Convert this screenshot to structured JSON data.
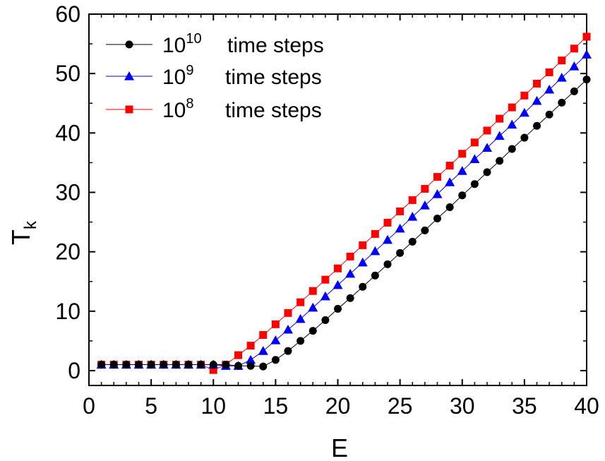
{
  "chart_data": {
    "type": "line",
    "xlabel": "E",
    "ylabel": "T",
    "ylabel_sub": "k",
    "xlim": [
      0,
      40
    ],
    "ylim": [
      -2.5,
      60
    ],
    "x_ticks": [
      0,
      5,
      10,
      15,
      20,
      25,
      30,
      35,
      40
    ],
    "y_ticks": [
      0,
      10,
      20,
      30,
      40,
      50,
      60
    ],
    "grid": false,
    "legend_position": "top-left",
    "x": [
      1,
      2,
      3,
      4,
      5,
      6,
      7,
      8,
      9,
      10,
      11,
      12,
      13,
      14,
      15,
      16,
      17,
      18,
      19,
      20,
      21,
      22,
      23,
      24,
      25,
      26,
      27,
      28,
      29,
      30,
      31,
      32,
      33,
      34,
      35,
      36,
      37,
      38,
      39,
      40
    ],
    "series": [
      {
        "base": "10",
        "exponent": "10",
        "suffix": "time steps",
        "color": "#000000",
        "marker": "circle",
        "values": [
          1.0,
          1.0,
          1.0,
          1.0,
          1.0,
          1.0,
          1.0,
          1.0,
          1.0,
          1.0,
          1.0,
          0.8,
          0.8,
          0.7,
          1.8,
          3.3,
          5.0,
          6.7,
          8.5,
          10.4,
          12.2,
          14.1,
          16.0,
          17.9,
          19.8,
          21.7,
          23.6,
          25.6,
          27.5,
          29.5,
          31.4,
          33.4,
          35.3,
          37.3,
          39.2,
          41.2,
          43.1,
          45.1,
          47.0,
          49.0
        ]
      },
      {
        "base": "10",
        "exponent": "9",
        "suffix": "time steps",
        "color": "#0000ff",
        "marker": "triangle",
        "values": [
          1.0,
          1.0,
          1.0,
          1.0,
          1.0,
          1.0,
          1.0,
          1.0,
          1.0,
          1.0,
          0.8,
          0.8,
          1.8,
          3.3,
          5.1,
          6.9,
          8.7,
          10.6,
          12.5,
          14.4,
          16.3,
          18.2,
          20.1,
          22.0,
          23.9,
          25.9,
          27.8,
          29.7,
          31.7,
          33.6,
          35.6,
          37.5,
          39.5,
          41.4,
          43.4,
          45.4,
          47.3,
          49.3,
          51.2,
          53.2
        ]
      },
      {
        "base": "10",
        "exponent": "8",
        "suffix": "time steps",
        "color": "#ff0000",
        "marker": "square",
        "values": [
          1.0,
          1.0,
          1.0,
          1.0,
          1.0,
          1.0,
          1.0,
          1.0,
          1.0,
          0.1,
          1.0,
          2.6,
          4.2,
          6.0,
          7.8,
          9.7,
          11.5,
          13.4,
          15.3,
          17.2,
          19.2,
          21.1,
          23.0,
          24.9,
          26.8,
          28.7,
          30.6,
          32.6,
          34.5,
          36.5,
          38.4,
          40.4,
          42.4,
          44.3,
          46.3,
          48.3,
          50.2,
          52.2,
          54.2,
          56.2
        ]
      }
    ]
  }
}
